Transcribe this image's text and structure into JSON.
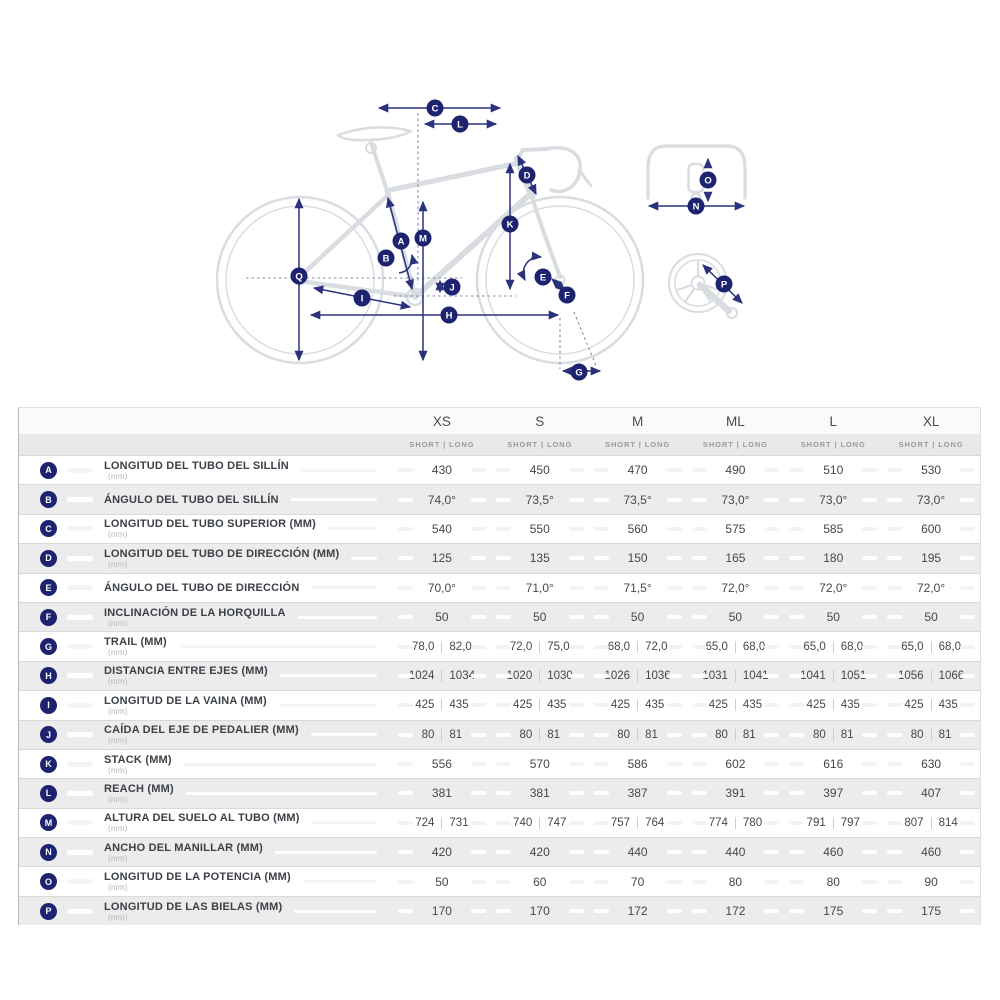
{
  "colors": {
    "badge_navy": "#1d236f",
    "arrow_navy": "#2a327b",
    "bike_gray": "#d9dce1",
    "shade_row": "#ececec"
  },
  "diagram": {
    "badges": [
      "A",
      "B",
      "C",
      "D",
      "E",
      "F",
      "G",
      "H",
      "I",
      "J",
      "K",
      "L",
      "M",
      "N",
      "O",
      "P",
      "Q"
    ]
  },
  "table": {
    "columns": [
      {
        "label": "XS",
        "sub": "SHORT | LONG"
      },
      {
        "label": "S",
        "sub": "SHORT | LONG"
      },
      {
        "label": "M",
        "sub": "SHORT | LONG"
      },
      {
        "label": "ML",
        "sub": "SHORT | LONG"
      },
      {
        "label": "L",
        "sub": "SHORT | LONG"
      },
      {
        "label": "XL",
        "sub": "SHORT | LONG"
      }
    ],
    "rows": [
      {
        "letter": "A",
        "label": "LONGITUD DEL TUBO DEL SILLÍN",
        "unit": "(mm)",
        "values": [
          [
            "430"
          ],
          [
            "450"
          ],
          [
            "470"
          ],
          [
            "490"
          ],
          [
            "510"
          ],
          [
            "530"
          ]
        ]
      },
      {
        "letter": "B",
        "label": "ÁNGULO DEL TUBO DEL SILLÍN",
        "unit": "",
        "values": [
          [
            "74,0°"
          ],
          [
            "73,5°"
          ],
          [
            "73,5°"
          ],
          [
            "73,0°"
          ],
          [
            "73,0°"
          ],
          [
            "73,0°"
          ]
        ]
      },
      {
        "letter": "C",
        "label": "LONGITUD DEL TUBO SUPERIOR (MM)",
        "unit": "(mm)",
        "values": [
          [
            "540"
          ],
          [
            "550"
          ],
          [
            "560"
          ],
          [
            "575"
          ],
          [
            "585"
          ],
          [
            "600"
          ]
        ]
      },
      {
        "letter": "D",
        "label": "LONGITUD DEL TUBO DE DIRECCIÓN (MM)",
        "unit": "(mm)",
        "values": [
          [
            "125"
          ],
          [
            "135"
          ],
          [
            "150"
          ],
          [
            "165"
          ],
          [
            "180"
          ],
          [
            "195"
          ]
        ]
      },
      {
        "letter": "E",
        "label": "ÁNGULO DEL TUBO DE DIRECCIÓN",
        "unit": "",
        "values": [
          [
            "70,0°"
          ],
          [
            "71,0°"
          ],
          [
            "71,5°"
          ],
          [
            "72,0°"
          ],
          [
            "72,0°"
          ],
          [
            "72,0°"
          ]
        ]
      },
      {
        "letter": "F",
        "label": "INCLINACIÓN DE LA HORQUILLA",
        "unit": "(mm)",
        "values": [
          [
            "50"
          ],
          [
            "50"
          ],
          [
            "50"
          ],
          [
            "50"
          ],
          [
            "50"
          ],
          [
            "50"
          ]
        ]
      },
      {
        "letter": "G",
        "label": "TRAIL (MM)",
        "unit": "(mm)",
        "values": [
          [
            "78,0",
            "82,0"
          ],
          [
            "72,0",
            "75,0"
          ],
          [
            "68,0",
            "72,0"
          ],
          [
            "65,0",
            "68,0"
          ],
          [
            "65,0",
            "68,0"
          ],
          [
            "65,0",
            "68,0"
          ]
        ]
      },
      {
        "letter": "H",
        "label": "DISTANCIA ENTRE EJES (MM)",
        "unit": "(mm)",
        "values": [
          [
            "1024",
            "1034"
          ],
          [
            "1020",
            "1030"
          ],
          [
            "1026",
            "1036"
          ],
          [
            "1031",
            "1041"
          ],
          [
            "1041",
            "1051"
          ],
          [
            "1056",
            "1066"
          ]
        ]
      },
      {
        "letter": "I",
        "label": "LONGITUD DE LA VAINA (MM)",
        "unit": "(mm)",
        "values": [
          [
            "425",
            "435"
          ],
          [
            "425",
            "435"
          ],
          [
            "425",
            "435"
          ],
          [
            "425",
            "435"
          ],
          [
            "425",
            "435"
          ],
          [
            "425",
            "435"
          ]
        ]
      },
      {
        "letter": "J",
        "label": "CAÍDA DEL EJE DE PEDALIER (MM)",
        "unit": "(mm)",
        "values": [
          [
            "80",
            "81"
          ],
          [
            "80",
            "81"
          ],
          [
            "80",
            "81"
          ],
          [
            "80",
            "81"
          ],
          [
            "80",
            "81"
          ],
          [
            "80",
            "81"
          ]
        ]
      },
      {
        "letter": "K",
        "label": "STACK (MM)",
        "unit": "(mm)",
        "values": [
          [
            "556"
          ],
          [
            "570"
          ],
          [
            "586"
          ],
          [
            "602"
          ],
          [
            "616"
          ],
          [
            "630"
          ]
        ]
      },
      {
        "letter": "L",
        "label": "REACH (MM)",
        "unit": "(mm)",
        "values": [
          [
            "381"
          ],
          [
            "381"
          ],
          [
            "387"
          ],
          [
            "391"
          ],
          [
            "397"
          ],
          [
            "407"
          ]
        ]
      },
      {
        "letter": "M",
        "label": "ALTURA DEL SUELO AL TUBO (MM)",
        "unit": "(mm)",
        "values": [
          [
            "724",
            "731"
          ],
          [
            "740",
            "747"
          ],
          [
            "757",
            "764"
          ],
          [
            "774",
            "780"
          ],
          [
            "791",
            "797"
          ],
          [
            "807",
            "814"
          ]
        ]
      },
      {
        "letter": "N",
        "label": "ANCHO DEL MANILLAR (MM)",
        "unit": "(mm)",
        "values": [
          [
            "420"
          ],
          [
            "420"
          ],
          [
            "440"
          ],
          [
            "440"
          ],
          [
            "460"
          ],
          [
            "460"
          ]
        ]
      },
      {
        "letter": "O",
        "label": "LONGITUD DE LA POTENCIA (MM)",
        "unit": "(mm)",
        "values": [
          [
            "50"
          ],
          [
            "60"
          ],
          [
            "70"
          ],
          [
            "80"
          ],
          [
            "80"
          ],
          [
            "90"
          ]
        ]
      },
      {
        "letter": "P",
        "label": "LONGITUD DE LAS BIELAS (MM)",
        "unit": "(mm)",
        "values": [
          [
            "170"
          ],
          [
            "170"
          ],
          [
            "172"
          ],
          [
            "172"
          ],
          [
            "175"
          ],
          [
            "175"
          ]
        ]
      }
    ]
  }
}
